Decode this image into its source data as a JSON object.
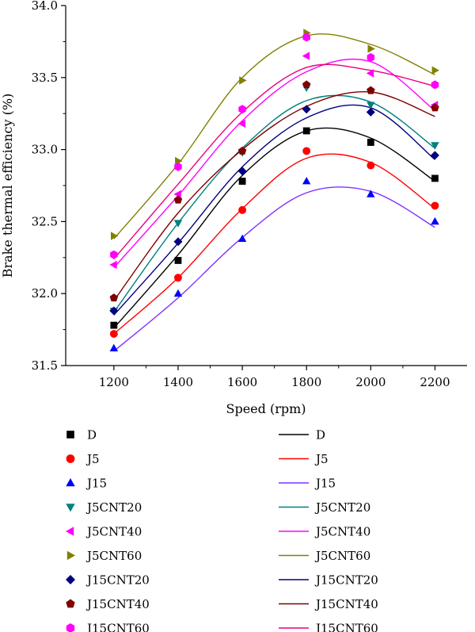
{
  "chart_data": {
    "type": "scatter",
    "title": "",
    "xlabel": "Speed (rpm)",
    "ylabel": "Brake thermal efficiency (%)",
    "xlim": [
      1050,
      2300
    ],
    "ylim": [
      31.5,
      34.0
    ],
    "x_ticks": [
      "1200",
      "1400",
      "1600",
      "1800",
      "2000",
      "2200"
    ],
    "y_ticks": [
      "31.5",
      "32.0",
      "32.5",
      "33.0",
      "33.5",
      "34.0"
    ],
    "x": [
      1200,
      1400,
      1600,
      1800,
      2000,
      2200
    ],
    "legend_position": "bottom, two columns (markers left, fitted lines right)",
    "series": [
      {
        "name": "D",
        "marker": "square",
        "color": "#000000",
        "values": [
          31.78,
          32.23,
          32.78,
          33.13,
          33.05,
          32.8
        ],
        "fit": [
          31.76,
          32.27,
          32.82,
          33.13,
          33.08,
          32.78
        ]
      },
      {
        "name": "J5",
        "marker": "circle",
        "color": "#ff0000",
        "values": [
          31.72,
          32.11,
          32.58,
          32.99,
          32.89,
          32.61
        ],
        "fit": [
          31.72,
          32.11,
          32.59,
          32.94,
          32.91,
          32.59
        ]
      },
      {
        "name": "J15",
        "marker": "triangle-up",
        "color": "#0000ff",
        "line_color": "#7f33ff",
        "values": [
          31.62,
          32.0,
          32.38,
          32.78,
          32.69,
          32.5
        ],
        "fit": [
          31.6,
          31.97,
          32.39,
          32.7,
          32.71,
          32.46
        ]
      },
      {
        "name": "J5CNT20",
        "marker": "triangle-down",
        "color": "#008080",
        "values": [
          31.88,
          32.49,
          32.98,
          33.43,
          33.31,
          33.03
        ],
        "fit": [
          31.87,
          32.49,
          33.01,
          33.34,
          33.33,
          33.01
        ]
      },
      {
        "name": "J5CNT40",
        "marker": "triangle-left",
        "color": "#ff00ff",
        "values": [
          32.2,
          32.69,
          33.18,
          33.65,
          33.53,
          33.31
        ],
        "fit": [
          32.18,
          32.68,
          33.2,
          33.54,
          33.61,
          33.27
        ]
      },
      {
        "name": "J5CNT60",
        "marker": "triangle-right",
        "color": "#808000",
        "values": [
          32.4,
          32.92,
          33.48,
          33.81,
          33.7,
          33.55
        ],
        "fit": [
          32.38,
          32.9,
          33.5,
          33.79,
          33.73,
          33.52
        ]
      },
      {
        "name": "J15CNT20",
        "marker": "diamond",
        "color": "#000080",
        "values": [
          31.88,
          32.36,
          32.85,
          33.28,
          33.26,
          32.96
        ],
        "fit": [
          31.85,
          32.35,
          32.88,
          33.22,
          33.29,
          32.93
        ]
      },
      {
        "name": "J15CNT40",
        "marker": "pentagon",
        "color": "#800000",
        "values": [
          31.97,
          32.65,
          32.99,
          33.45,
          33.41,
          33.29
        ],
        "fit": [
          31.95,
          32.56,
          33.0,
          33.3,
          33.4,
          33.23
        ]
      },
      {
        "name": "J15CNT60",
        "marker": "hexagon",
        "color": "#ff00ff",
        "line_color": "#e8007a",
        "values": [
          32.27,
          32.88,
          33.28,
          33.78,
          33.64,
          33.45
        ],
        "fit": [
          32.24,
          32.76,
          33.26,
          33.57,
          33.55,
          33.44
        ]
      }
    ]
  }
}
